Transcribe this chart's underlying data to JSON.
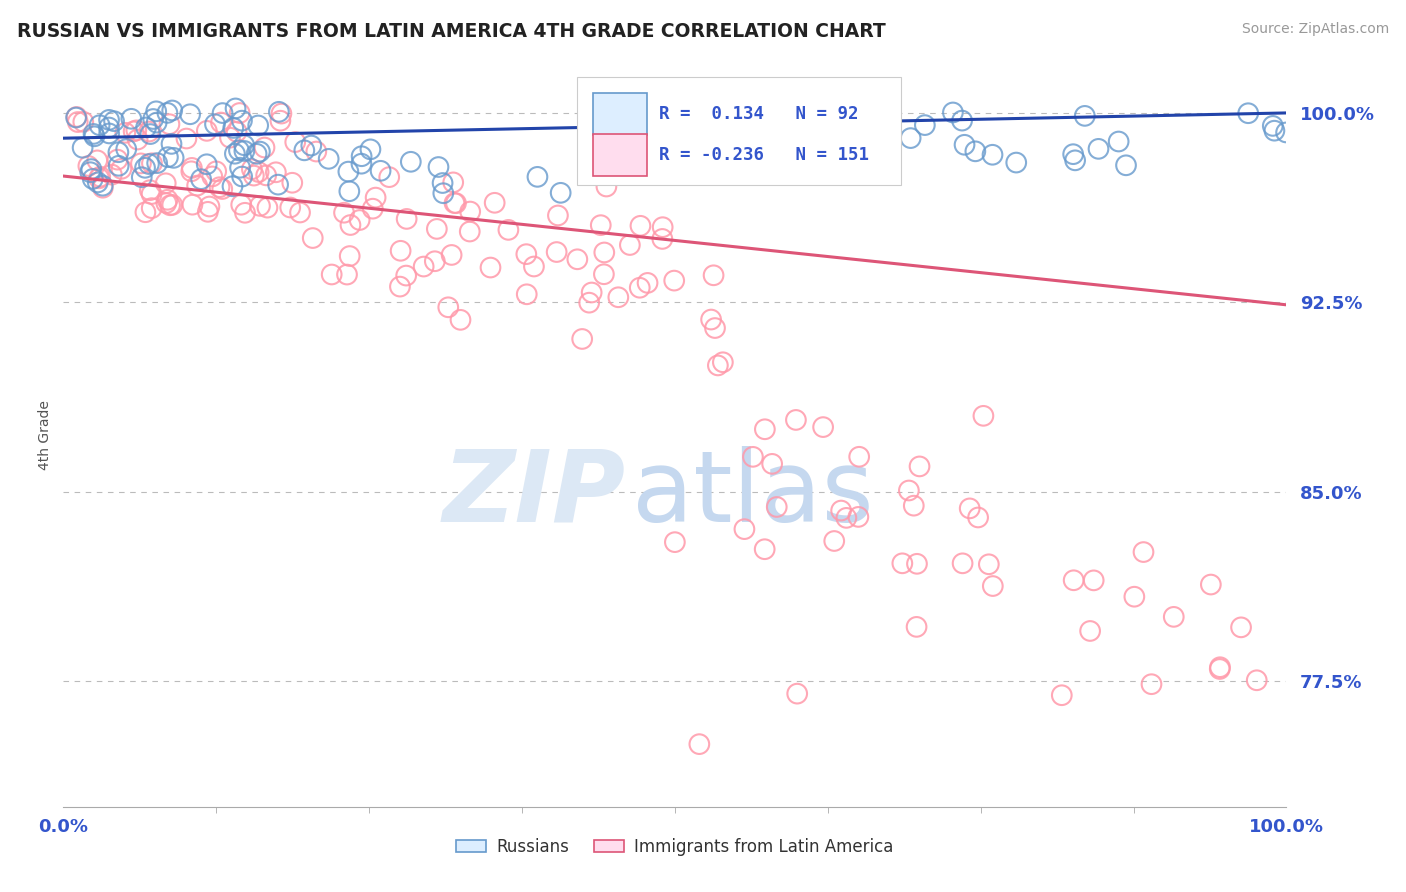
{
  "title": "RUSSIAN VS IMMIGRANTS FROM LATIN AMERICA 4TH GRADE CORRELATION CHART",
  "source": "Source: ZipAtlas.com",
  "ylabel": "4th Grade",
  "ytick_values": [
    1.0,
    0.925,
    0.85,
    0.775
  ],
  "xlim": [
    0.0,
    1.0
  ],
  "ylim": [
    0.725,
    1.02
  ],
  "russian_R": 0.134,
  "russian_N": 92,
  "latin_R": -0.236,
  "latin_N": 151,
  "russian_color": "#6699cc",
  "latin_color": "#ff99aa",
  "russian_line_color": "#2244aa",
  "latin_line_color": "#dd5577",
  "background_color": "#ffffff",
  "grid_color": "#bbbbbb",
  "title_color": "#222222",
  "axis_label_color": "#3355cc",
  "legend_label_russian": "Russians",
  "legend_label_latin": "Immigrants from Latin America",
  "blue_line_y0": 0.99,
  "blue_line_y1": 1.0,
  "pink_line_y0": 0.975,
  "pink_line_y1": 0.924
}
